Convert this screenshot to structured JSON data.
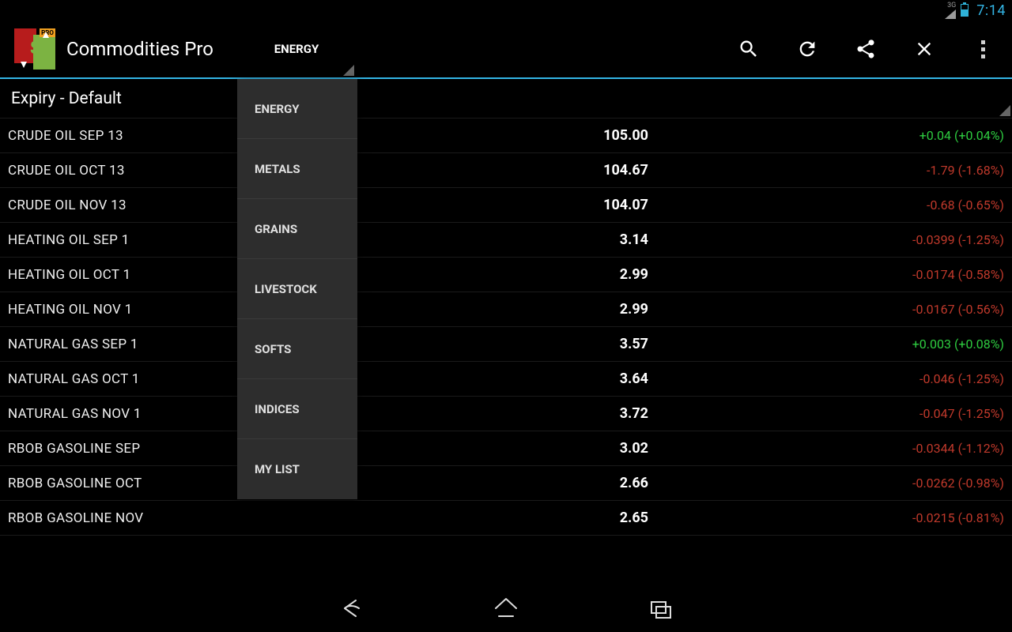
{
  "status": {
    "net": "3G",
    "time": "7:14"
  },
  "app": {
    "title": "Commodities Pro",
    "tab_selected": "ENERGY"
  },
  "dropdown": {
    "items": [
      "ENERGY",
      "METALS",
      "GRAINS",
      "LIVESTOCK",
      "SOFTS",
      "INDICES",
      "MY LIST"
    ]
  },
  "subheader": "Expiry - Default",
  "colors": {
    "positive": "#2ecc40",
    "negative": "#c0392b",
    "accent": "#33b5e5"
  },
  "rows": [
    {
      "name": "CRUDE OIL SEP 13",
      "price": "105.00",
      "change": "+0.04 (+0.04%)",
      "dir": "pos"
    },
    {
      "name": "CRUDE OIL OCT 13",
      "price": "104.67",
      "change": "-1.79 (-1.68%)",
      "dir": "neg"
    },
    {
      "name": "CRUDE OIL NOV 13",
      "price": "104.07",
      "change": "-0.68 (-0.65%)",
      "dir": "neg"
    },
    {
      "name": "HEATING OIL SEP 1",
      "price": "3.14",
      "change": "-0.0399 (-1.25%)",
      "dir": "neg"
    },
    {
      "name": "HEATING OIL OCT 1",
      "price": "2.99",
      "change": "-0.0174 (-0.58%)",
      "dir": "neg"
    },
    {
      "name": "HEATING OIL NOV 1",
      "price": "2.99",
      "change": "-0.0167 (-0.56%)",
      "dir": "neg"
    },
    {
      "name": "NATURAL GAS SEP 1",
      "price": "3.57",
      "change": "+0.003 (+0.08%)",
      "dir": "pos"
    },
    {
      "name": "NATURAL GAS OCT 1",
      "price": "3.64",
      "change": "-0.046 (-1.25%)",
      "dir": "neg"
    },
    {
      "name": "NATURAL GAS NOV 1",
      "price": "3.72",
      "change": "-0.047 (-1.25%)",
      "dir": "neg"
    },
    {
      "name": "RBOB GASOLINE SEP",
      "price": "3.02",
      "change": "-0.0344 (-1.12%)",
      "dir": "neg"
    },
    {
      "name": "RBOB GASOLINE OCT",
      "price": "2.66",
      "change": "-0.0262 (-0.98%)",
      "dir": "neg"
    },
    {
      "name": "RBOB GASOLINE NOV",
      "price": "2.65",
      "change": "-0.0215 (-0.81%)",
      "dir": "neg"
    }
  ]
}
